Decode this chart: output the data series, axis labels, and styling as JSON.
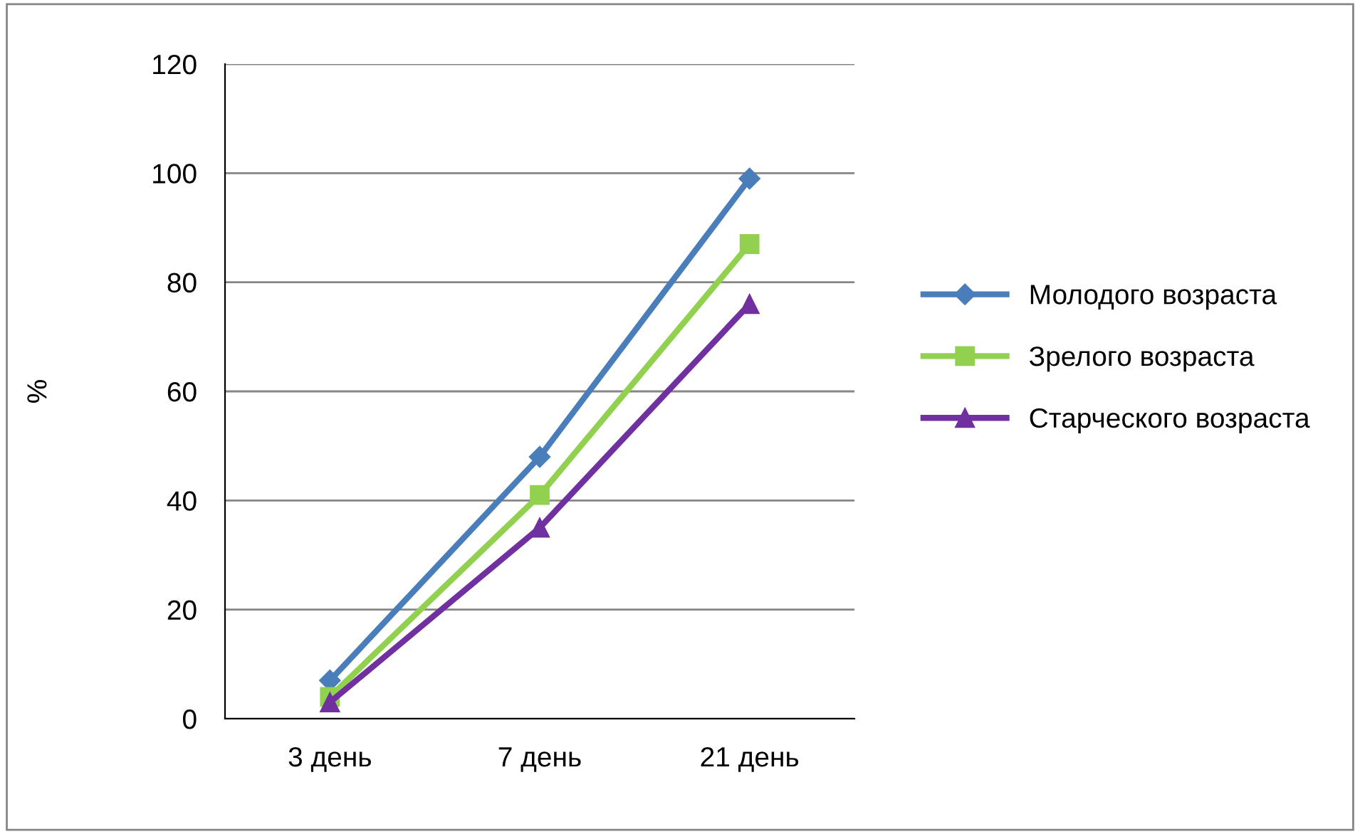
{
  "chart_data": {
    "type": "line",
    "ylabel": "%",
    "categories": [
      "3 день",
      "7 день",
      "21 день"
    ],
    "series": [
      {
        "name": "Молодого возраста",
        "color": "#4a7ebb",
        "marker": "diamond",
        "values": [
          7,
          48,
          99
        ]
      },
      {
        "name": "Зрелого возраста",
        "color": "#92d050",
        "marker": "square",
        "values": [
          4,
          41,
          87
        ]
      },
      {
        "name": "Старческого возраста",
        "color": "#7030a0",
        "marker": "triangle",
        "values": [
          3,
          35,
          76
        ]
      }
    ],
    "ylim": [
      0,
      120
    ],
    "yticks": [
      0,
      20,
      40,
      60,
      80,
      100,
      120
    ],
    "grid": "y",
    "legend": "right"
  }
}
